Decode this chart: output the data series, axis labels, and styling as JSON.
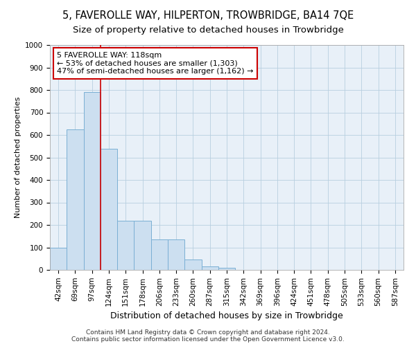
{
  "title": "5, FAVEROLLE WAY, HILPERTON, TROWBRIDGE, BA14 7QE",
  "subtitle": "Size of property relative to detached houses in Trowbridge",
  "xlabel": "Distribution of detached houses by size in Trowbridge",
  "ylabel": "Number of detached properties",
  "categories": [
    "42sqm",
    "69sqm",
    "97sqm",
    "124sqm",
    "151sqm",
    "178sqm",
    "206sqm",
    "233sqm",
    "260sqm",
    "287sqm",
    "315sqm",
    "342sqm",
    "369sqm",
    "396sqm",
    "424sqm",
    "451sqm",
    "478sqm",
    "505sqm",
    "533sqm",
    "560sqm",
    "587sqm"
  ],
  "values": [
    100,
    625,
    790,
    540,
    220,
    220,
    135,
    135,
    45,
    15,
    10,
    0,
    0,
    0,
    0,
    0,
    0,
    0,
    0,
    0,
    0
  ],
  "bar_color": "#ccdff0",
  "bar_edgecolor": "#7aafd4",
  "property_line_x": 2.5,
  "annotation_text": "5 FAVEROLLE WAY: 118sqm\n← 53% of detached houses are smaller (1,303)\n47% of semi-detached houses are larger (1,162) →",
  "annotation_box_color": "#ffffff",
  "annotation_box_edgecolor": "#cc0000",
  "vertical_line_color": "#cc0000",
  "ylim": [
    0,
    1000
  ],
  "yticks": [
    0,
    100,
    200,
    300,
    400,
    500,
    600,
    700,
    800,
    900,
    1000
  ],
  "footer_line1": "Contains HM Land Registry data © Crown copyright and database right 2024.",
  "footer_line2": "Contains public sector information licensed under the Open Government Licence v3.0.",
  "background_color": "#ffffff",
  "plot_bg_color": "#e8f0f8",
  "grid_color": "#b8cfe0",
  "title_fontsize": 10.5,
  "subtitle_fontsize": 9.5,
  "annotation_fontsize": 8,
  "ylabel_fontsize": 8,
  "xlabel_fontsize": 9,
  "tick_fontsize": 7.5,
  "footer_fontsize": 6.5
}
